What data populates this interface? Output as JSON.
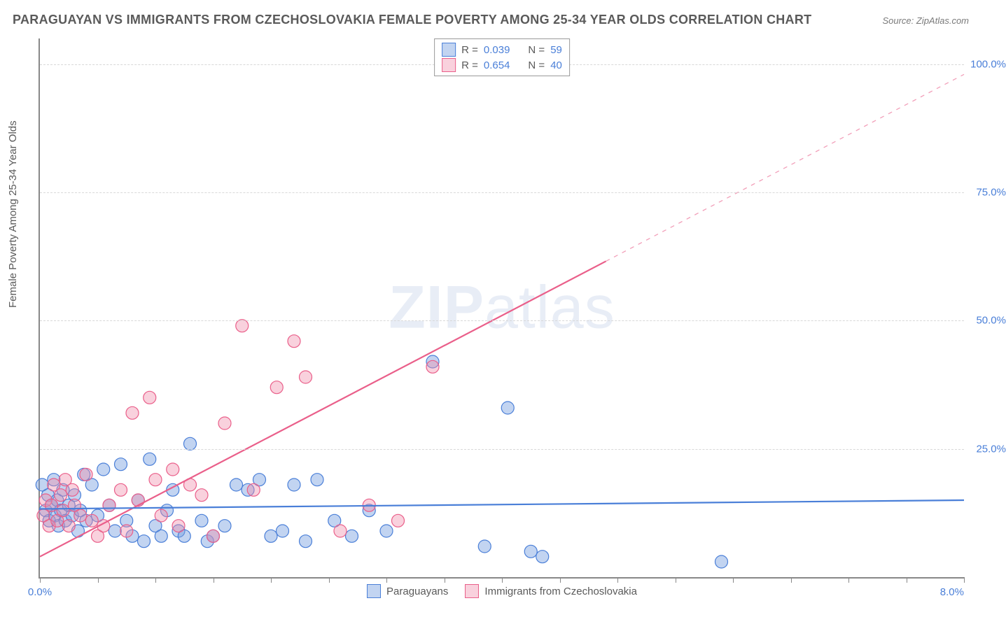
{
  "title": "PARAGUAYAN VS IMMIGRANTS FROM CZECHOSLOVAKIA FEMALE POVERTY AMONG 25-34 YEAR OLDS CORRELATION CHART",
  "source": "Source: ZipAtlas.com",
  "watermark_bold": "ZIP",
  "watermark_rest": "atlas",
  "chart": {
    "type": "scatter",
    "ylabel": "Female Poverty Among 25-34 Year Olds",
    "xlim": [
      0,
      8
    ],
    "ylim": [
      0,
      105
    ],
    "xtick_start_label": "0.0%",
    "xtick_end_label": "8.0%",
    "xtick_positions": [
      0,
      0.5,
      1,
      1.5,
      2,
      2.5,
      3,
      3.5,
      4,
      4.5,
      5,
      5.5,
      6,
      6.5,
      7,
      7.5,
      8
    ],
    "ytick_labels": [
      "25.0%",
      "50.0%",
      "75.0%",
      "100.0%"
    ],
    "ytick_values": [
      25,
      50,
      75,
      100
    ],
    "grid_color": "#d8d8d8",
    "background_color": "#ffffff",
    "axis_color": "#888888",
    "marker_radius": 9,
    "marker_stroke_width": 1.2,
    "line_width": 2.2,
    "series": [
      {
        "name": "Paraguayans",
        "fill": "rgba(120,160,225,0.45)",
        "stroke": "#4a7fd8",
        "R": "0.039",
        "N": "59",
        "trend": {
          "x1": 0,
          "y1": 13.3,
          "x2": 8,
          "y2": 15.0,
          "solid_until_x": 8
        },
        "points": [
          [
            0.02,
            18
          ],
          [
            0.05,
            13
          ],
          [
            0.07,
            16
          ],
          [
            0.08,
            11
          ],
          [
            0.1,
            14
          ],
          [
            0.12,
            19
          ],
          [
            0.13,
            12
          ],
          [
            0.15,
            15
          ],
          [
            0.16,
            10
          ],
          [
            0.18,
            13
          ],
          [
            0.2,
            17
          ],
          [
            0.22,
            11
          ],
          [
            0.25,
            14
          ],
          [
            0.28,
            12
          ],
          [
            0.3,
            16
          ],
          [
            0.33,
            9
          ],
          [
            0.35,
            13
          ],
          [
            0.38,
            20
          ],
          [
            0.4,
            11
          ],
          [
            0.45,
            18
          ],
          [
            0.5,
            12
          ],
          [
            0.55,
            21
          ],
          [
            0.6,
            14
          ],
          [
            0.65,
            9
          ],
          [
            0.7,
            22
          ],
          [
            0.75,
            11
          ],
          [
            0.8,
            8
          ],
          [
            0.85,
            15
          ],
          [
            0.9,
            7
          ],
          [
            0.95,
            23
          ],
          [
            1.0,
            10
          ],
          [
            1.05,
            8
          ],
          [
            1.1,
            13
          ],
          [
            1.15,
            17
          ],
          [
            1.2,
            9
          ],
          [
            1.25,
            8
          ],
          [
            1.3,
            26
          ],
          [
            1.4,
            11
          ],
          [
            1.45,
            7
          ],
          [
            1.5,
            8
          ],
          [
            1.6,
            10
          ],
          [
            1.7,
            18
          ],
          [
            1.8,
            17
          ],
          [
            1.9,
            19
          ],
          [
            2.0,
            8
          ],
          [
            2.1,
            9
          ],
          [
            2.2,
            18
          ],
          [
            2.3,
            7
          ],
          [
            2.4,
            19
          ],
          [
            2.55,
            11
          ],
          [
            2.7,
            8
          ],
          [
            2.85,
            13
          ],
          [
            3.0,
            9
          ],
          [
            3.4,
            42
          ],
          [
            3.85,
            6
          ],
          [
            4.05,
            33
          ],
          [
            4.25,
            5
          ],
          [
            4.35,
            4
          ],
          [
            5.9,
            3
          ]
        ]
      },
      {
        "name": "Immigrants from Czechoslovakia",
        "fill": "rgba(240,140,170,0.40)",
        "stroke": "#ea5f8a",
        "R": "0.654",
        "N": "40",
        "trend": {
          "x1": 0,
          "y1": 4,
          "x2": 8,
          "y2": 98,
          "solid_until_x": 4.9
        },
        "points": [
          [
            0.03,
            12
          ],
          [
            0.05,
            15
          ],
          [
            0.08,
            10
          ],
          [
            0.1,
            14
          ],
          [
            0.12,
            18
          ],
          [
            0.15,
            11
          ],
          [
            0.18,
            16
          ],
          [
            0.2,
            13
          ],
          [
            0.22,
            19
          ],
          [
            0.25,
            10
          ],
          [
            0.28,
            17
          ],
          [
            0.3,
            14
          ],
          [
            0.35,
            12
          ],
          [
            0.4,
            20
          ],
          [
            0.45,
            11
          ],
          [
            0.5,
            8
          ],
          [
            0.55,
            10
          ],
          [
            0.6,
            14
          ],
          [
            0.7,
            17
          ],
          [
            0.75,
            9
          ],
          [
            0.8,
            32
          ],
          [
            0.85,
            15
          ],
          [
            0.95,
            35
          ],
          [
            1.0,
            19
          ],
          [
            1.05,
            12
          ],
          [
            1.15,
            21
          ],
          [
            1.2,
            10
          ],
          [
            1.3,
            18
          ],
          [
            1.4,
            16
          ],
          [
            1.5,
            8
          ],
          [
            1.6,
            30
          ],
          [
            1.75,
            49
          ],
          [
            1.85,
            17
          ],
          [
            2.05,
            37
          ],
          [
            2.2,
            46
          ],
          [
            2.3,
            39
          ],
          [
            2.6,
            9
          ],
          [
            2.85,
            14
          ],
          [
            3.1,
            11
          ],
          [
            3.4,
            41
          ]
        ]
      }
    ],
    "legend_top_labels": {
      "R": "R =",
      "N": "N ="
    },
    "legend_bottom": [
      "Paraguayans",
      "Immigrants from Czechoslovakia"
    ]
  }
}
